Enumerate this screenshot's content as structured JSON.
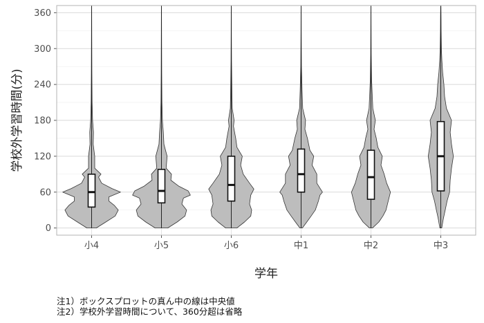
{
  "chart_data": {
    "type": "violin",
    "title": "",
    "xlabel": "学年",
    "ylabel": "学校外学習時間(分)",
    "ylim": [
      -12,
      372
    ],
    "yticks": [
      0,
      60,
      120,
      180,
      240,
      300,
      360
    ],
    "grid": true,
    "categories": [
      "小4",
      "小5",
      "小6",
      "中1",
      "中2",
      "中3"
    ],
    "series": [
      {
        "category": "小4",
        "min": 0,
        "q1": 35,
        "median": 60,
        "q3": 90,
        "max": 372,
        "density": [
          [
            0,
            0.15
          ],
          [
            10,
            0.45
          ],
          [
            20,
            0.75
          ],
          [
            30,
            0.85
          ],
          [
            38,
            0.72
          ],
          [
            45,
            0.55
          ],
          [
            52,
            0.55
          ],
          [
            60,
            0.92
          ],
          [
            66,
            0.65
          ],
          [
            75,
            0.32
          ],
          [
            85,
            0.22
          ],
          [
            90,
            0.3
          ],
          [
            100,
            0.1
          ],
          [
            120,
            0.1
          ],
          [
            140,
            0.05
          ],
          [
            160,
            0.06
          ],
          [
            180,
            0.03
          ],
          [
            210,
            0.015
          ],
          [
            260,
            0.008
          ],
          [
            330,
            0.004
          ],
          [
            372,
            0.003
          ]
        ]
      },
      {
        "category": "小5",
        "min": 0,
        "q1": 42,
        "median": 62,
        "q3": 98,
        "max": 372,
        "density": [
          [
            0,
            0.2
          ],
          [
            10,
            0.5
          ],
          [
            20,
            0.75
          ],
          [
            30,
            0.8
          ],
          [
            40,
            0.65
          ],
          [
            50,
            0.7
          ],
          [
            55,
            0.92
          ],
          [
            62,
            0.85
          ],
          [
            70,
            0.55
          ],
          [
            80,
            0.3
          ],
          [
            90,
            0.32
          ],
          [
            100,
            0.15
          ],
          [
            120,
            0.18
          ],
          [
            140,
            0.08
          ],
          [
            160,
            0.06
          ],
          [
            180,
            0.03
          ],
          [
            210,
            0.015
          ],
          [
            260,
            0.008
          ],
          [
            330,
            0.004
          ],
          [
            372,
            0.003
          ]
        ]
      },
      {
        "category": "小6",
        "min": 0,
        "q1": 45,
        "median": 72,
        "q3": 120,
        "max": 372,
        "density": [
          [
            0,
            0.18
          ],
          [
            10,
            0.42
          ],
          [
            20,
            0.62
          ],
          [
            30,
            0.65
          ],
          [
            40,
            0.58
          ],
          [
            55,
            0.62
          ],
          [
            65,
            0.72
          ],
          [
            75,
            0.58
          ],
          [
            90,
            0.38
          ],
          [
            105,
            0.3
          ],
          [
            120,
            0.35
          ],
          [
            135,
            0.18
          ],
          [
            150,
            0.14
          ],
          [
            170,
            0.07
          ],
          [
            180,
            0.09
          ],
          [
            200,
            0.03
          ],
          [
            230,
            0.02
          ],
          [
            280,
            0.008
          ],
          [
            330,
            0.004
          ],
          [
            372,
            0.003
          ]
        ]
      },
      {
        "category": "中1",
        "min": 0,
        "q1": 60,
        "median": 90,
        "q3": 132,
        "max": 372,
        "density": [
          [
            0,
            0.04
          ],
          [
            10,
            0.18
          ],
          [
            20,
            0.32
          ],
          [
            30,
            0.45
          ],
          [
            45,
            0.55
          ],
          [
            55,
            0.6
          ],
          [
            60,
            0.68
          ],
          [
            75,
            0.5
          ],
          [
            90,
            0.5
          ],
          [
            105,
            0.35
          ],
          [
            120,
            0.4
          ],
          [
            130,
            0.28
          ],
          [
            150,
            0.2
          ],
          [
            165,
            0.12
          ],
          [
            180,
            0.14
          ],
          [
            200,
            0.05
          ],
          [
            230,
            0.03
          ],
          [
            270,
            0.01
          ],
          [
            330,
            0.004
          ],
          [
            372,
            0.003
          ]
        ]
      },
      {
        "category": "中2",
        "min": 0,
        "q1": 48,
        "median": 85,
        "q3": 130,
        "max": 372,
        "density": [
          [
            0,
            0.05
          ],
          [
            10,
            0.25
          ],
          [
            20,
            0.38
          ],
          [
            30,
            0.48
          ],
          [
            45,
            0.55
          ],
          [
            60,
            0.62
          ],
          [
            75,
            0.5
          ],
          [
            90,
            0.42
          ],
          [
            105,
            0.32
          ],
          [
            120,
            0.36
          ],
          [
            135,
            0.22
          ],
          [
            150,
            0.17
          ],
          [
            165,
            0.1
          ],
          [
            180,
            0.14
          ],
          [
            200,
            0.06
          ],
          [
            225,
            0.04
          ],
          [
            250,
            0.02
          ],
          [
            290,
            0.008
          ],
          [
            340,
            0.004
          ],
          [
            372,
            0.003
          ]
        ]
      },
      {
        "category": "中3",
        "min": 0,
        "q1": 62,
        "median": 120,
        "q3": 178,
        "max": 372,
        "density": [
          [
            0,
            0.03
          ],
          [
            15,
            0.08
          ],
          [
            30,
            0.14
          ],
          [
            45,
            0.2
          ],
          [
            60,
            0.28
          ],
          [
            80,
            0.3
          ],
          [
            100,
            0.34
          ],
          [
            120,
            0.4
          ],
          [
            140,
            0.34
          ],
          [
            160,
            0.3
          ],
          [
            180,
            0.34
          ],
          [
            200,
            0.18
          ],
          [
            220,
            0.12
          ],
          [
            240,
            0.1
          ],
          [
            260,
            0.06
          ],
          [
            280,
            0.035
          ],
          [
            300,
            0.02
          ],
          [
            330,
            0.012
          ],
          [
            350,
            0.008
          ],
          [
            372,
            0.005
          ]
        ]
      }
    ]
  },
  "notes": [
    "注1）ボックスプロットの真ん中の線は中央値",
    "注2）学校外学習時間について、360分超は省略"
  ]
}
